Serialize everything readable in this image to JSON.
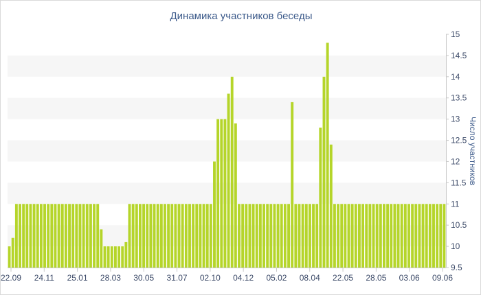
{
  "chart_data": {
    "type": "bar",
    "title": "Динамика участников беседы",
    "xlabel": "",
    "ylabel": "Число участников",
    "ylim": [
      9.5,
      15
    ],
    "y_ticks": [
      "15",
      "14.5",
      "14",
      "13.5",
      "13",
      "12.5",
      "12",
      "11.5",
      "11",
      "10.5",
      "10",
      "9.5"
    ],
    "y_axis_position": "right",
    "grid": "alternating horizontal bands",
    "bar_color": "#b5d52a",
    "band_color": "#f6f6f6",
    "x_tick_labels": [
      "22.09",
      "24.11",
      "25.01",
      "28.03",
      "30.05",
      "31.07",
      "02.10",
      "04.12",
      "05.02",
      "08.04",
      "22.05",
      "28.05",
      "03.06",
      "09.06"
    ],
    "values": [
      10,
      10.2,
      11,
      11,
      11,
      11,
      11,
      11,
      11,
      11,
      11,
      11,
      11,
      11,
      11,
      11,
      11,
      11,
      11,
      11,
      11,
      11,
      11,
      11,
      11,
      11,
      10.4,
      10,
      10,
      10,
      10,
      10,
      10,
      10.1,
      11,
      11,
      11,
      11,
      11,
      11,
      11,
      11,
      11,
      11,
      11,
      11,
      11,
      11,
      11,
      11,
      11,
      11,
      11,
      11,
      11,
      11,
      11,
      11,
      12,
      13,
      13,
      13,
      13.6,
      14,
      12.9,
      11,
      11,
      11,
      11,
      11,
      11,
      11,
      11,
      11,
      11,
      11,
      11,
      11,
      11,
      11,
      13.4,
      11,
      11,
      11,
      11,
      11,
      11,
      11,
      12.8,
      14,
      14.8,
      12.4,
      11,
      11,
      11,
      11,
      11,
      11,
      11,
      11,
      11,
      11,
      11,
      11,
      11,
      11,
      11,
      11,
      11,
      11,
      11,
      11,
      11,
      11,
      11,
      11,
      11,
      11,
      11,
      11,
      11,
      11,
      11,
      11
    ]
  }
}
